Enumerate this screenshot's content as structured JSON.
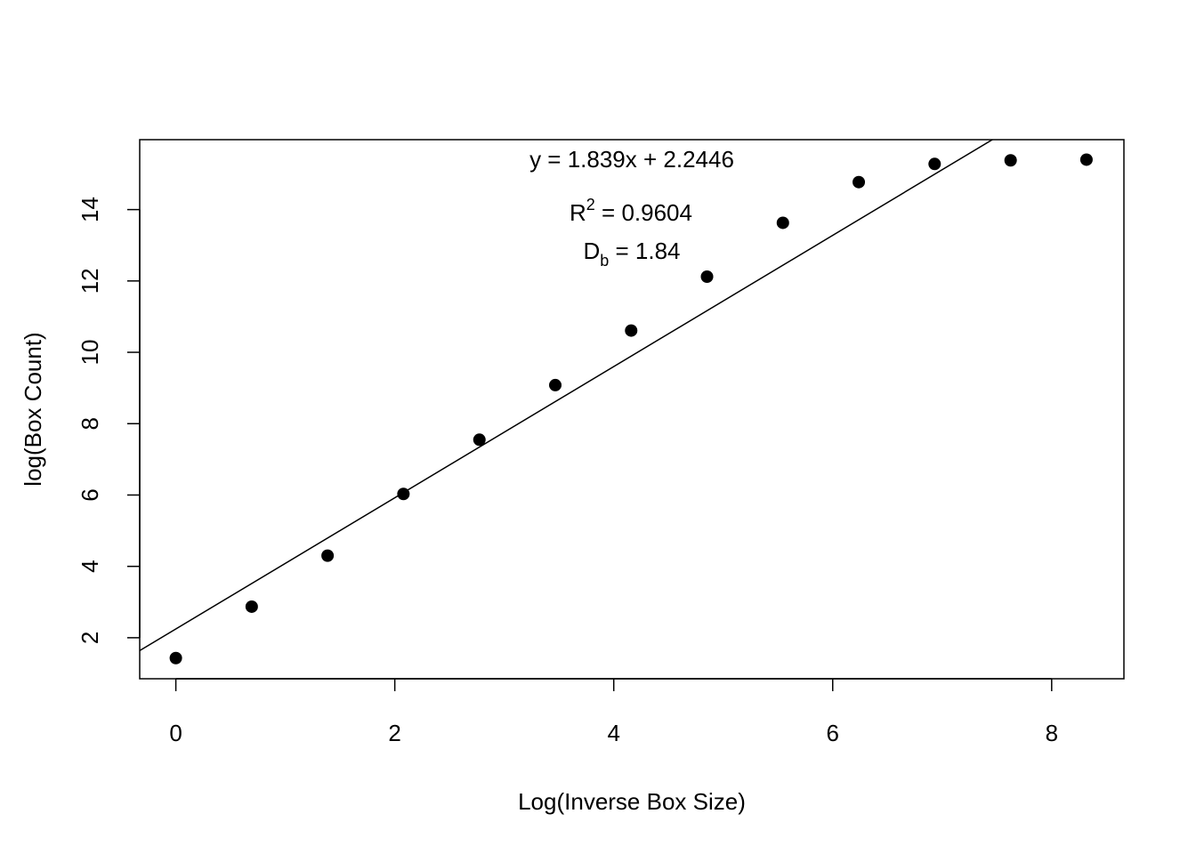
{
  "chart_data": {
    "type": "scatter",
    "xlabel": "Log(Inverse Box Size)",
    "ylabel": "log(Box Count)",
    "xlim": [
      -0.33,
      8.66
    ],
    "ylim": [
      0.85,
      15.96
    ],
    "x_ticks": [
      0,
      2,
      4,
      6,
      8
    ],
    "x_tick_labels": [
      "0",
      "2",
      "4",
      "6",
      "8"
    ],
    "y_ticks": [
      2,
      4,
      6,
      8,
      10,
      12,
      14
    ],
    "y_tick_labels": [
      "2",
      "4",
      "6",
      "8",
      "10",
      "12",
      "14"
    ],
    "points": [
      {
        "x": 0.0,
        "y": 1.43
      },
      {
        "x": 0.693,
        "y": 2.87
      },
      {
        "x": 1.386,
        "y": 4.3
      },
      {
        "x": 2.079,
        "y": 6.03
      },
      {
        "x": 2.773,
        "y": 7.55
      },
      {
        "x": 3.466,
        "y": 9.08
      },
      {
        "x": 4.159,
        "y": 10.61
      },
      {
        "x": 4.852,
        "y": 12.12
      },
      {
        "x": 5.545,
        "y": 13.63
      },
      {
        "x": 6.238,
        "y": 14.77
      },
      {
        "x": 6.931,
        "y": 15.28
      },
      {
        "x": 7.625,
        "y": 15.38
      },
      {
        "x": 8.318,
        "y": 15.4
      }
    ],
    "fit_line": {
      "slope": 1.839,
      "intercept": 2.2446
    },
    "annotations": {
      "equation": "y = 1.839x + 2.2446",
      "r2_base": "R",
      "r2_sup": "2",
      "r2_value": " = 0.9604",
      "db_base": "D",
      "db_sub": "b",
      "db_value": " = 1.84"
    },
    "grid": false,
    "legend": "none",
    "colors": {
      "points": "#000000",
      "line": "#000000",
      "background": "#ffffff"
    }
  }
}
